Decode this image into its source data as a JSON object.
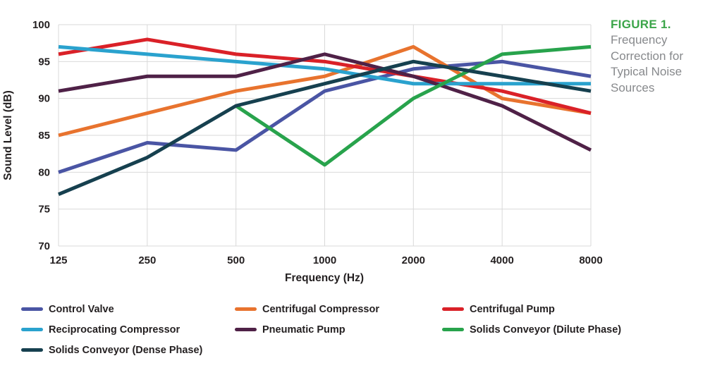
{
  "figure": {
    "label": "FIGURE 1.",
    "caption": "Frequency Correction for Typical Noise Sources",
    "label_color": "#3ba549",
    "caption_color": "#87898c"
  },
  "chart_data": {
    "type": "line",
    "title": "",
    "xlabel": "Frequency (Hz)",
    "ylabel": "Sound Level (dB)",
    "x_categories": [
      "125",
      "250",
      "500",
      "1000",
      "2000",
      "4000",
      "8000"
    ],
    "yticks": [
      "100",
      "95",
      "90",
      "85",
      "80",
      "75",
      "70"
    ],
    "ylim": [
      70,
      100
    ],
    "ytick_step": 5,
    "grid": true,
    "grid_color": "#d9d9d9",
    "legend_position": "bottom",
    "line_width": 5,
    "series": [
      {
        "name": "Control Valve",
        "color": "#4a55a4",
        "values": [
          80,
          84,
          83,
          91,
          94,
          95,
          93
        ]
      },
      {
        "name": "Centrifugal Compressor",
        "color": "#e8732e",
        "values": [
          85,
          88,
          91,
          93,
          97,
          90,
          88
        ]
      },
      {
        "name": "Centrifugal Pump",
        "color": "#da2128",
        "values": [
          96,
          98,
          96,
          95,
          93,
          91,
          88
        ]
      },
      {
        "name": "Reciprocating Compressor",
        "color": "#2aa2ce",
        "values": [
          97,
          96,
          95,
          94,
          92,
          92,
          92
        ]
      },
      {
        "name": "Pneumatic Pump",
        "color": "#4f2147",
        "values": [
          91,
          93,
          93,
          96,
          93,
          89,
          83
        ]
      },
      {
        "name": "Solids Conveyor (Dilute Phase)",
        "color": "#28a34c",
        "values": [
          null,
          null,
          89,
          81,
          90,
          96,
          97
        ]
      },
      {
        "name": "Solids Conveyor (Dense Phase)",
        "color": "#16404f",
        "values": [
          77,
          82,
          89,
          92,
          95,
          93,
          91
        ]
      }
    ]
  }
}
